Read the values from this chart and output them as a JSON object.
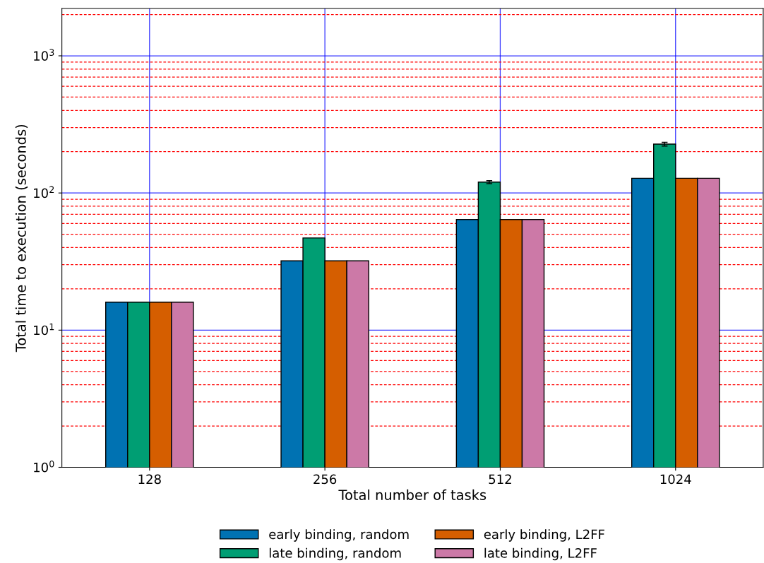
{
  "chart_data": {
    "type": "bar",
    "xlabel": "Total number of tasks",
    "ylabel": "Total time to execution (seconds)",
    "categories": [
      "128",
      "256",
      "512",
      "1024"
    ],
    "series": [
      {
        "name": "early binding, random",
        "color": "#0072b2",
        "values": [
          16,
          32,
          64,
          128
        ]
      },
      {
        "name": "late binding, random",
        "color": "#009e73",
        "values": [
          16,
          47,
          120,
          227
        ],
        "errors": [
          null,
          null,
          3,
          7
        ]
      },
      {
        "name": "early binding, L2FF",
        "color": "#d55e00",
        "values": [
          16,
          32,
          64,
          128
        ]
      },
      {
        "name": "late binding, L2FF",
        "color": "#cc79a7",
        "values": [
          16,
          32,
          64,
          128
        ]
      }
    ],
    "log": true,
    "ylim": [
      1,
      2215
    ],
    "yticks": [
      {
        "value": 1,
        "label": "10$^{0}$"
      },
      {
        "value": 10,
        "label": "10$^{1}$"
      },
      {
        "value": 100,
        "label": "10$^{2}$"
      },
      {
        "value": 1000,
        "label": "10$^{3}$"
      }
    ],
    "grid": true,
    "legend": "bottom",
    "ref_lines": [
      {
        "axis": "y",
        "value": 2,
        "color": "#ff0000",
        "line_style": "dashed"
      },
      {
        "axis": "y",
        "value": 3,
        "color": "#ff0000",
        "line_style": "dashed"
      },
      {
        "axis": "y",
        "value": 4,
        "color": "#ff0000",
        "line_style": "dashed"
      },
      {
        "axis": "y",
        "value": 5,
        "color": "#ff0000",
        "line_style": "dashed"
      },
      {
        "axis": "y",
        "value": 6,
        "color": "#ff0000",
        "line_style": "dashed"
      },
      {
        "axis": "y",
        "value": 7,
        "color": "#ff0000",
        "line_style": "dashed"
      },
      {
        "axis": "y",
        "value": 8,
        "color": "#ff0000",
        "line_style": "dashed"
      },
      {
        "axis": "y",
        "value": 9,
        "color": "#ff0000",
        "line_style": "dashed"
      },
      {
        "axis": "y",
        "value": 20,
        "color": "#ff0000",
        "line_style": "dashed"
      },
      {
        "axis": "y",
        "value": 30,
        "color": "#ff0000",
        "line_style": "dashed"
      },
      {
        "axis": "y",
        "value": 40,
        "color": "#ff0000",
        "line_style": "dashed"
      },
      {
        "axis": "y",
        "value": 50,
        "color": "#ff0000",
        "line_style": "dashed"
      },
      {
        "axis": "y",
        "value": 60,
        "color": "#ff0000",
        "line_style": "dashed"
      },
      {
        "axis": "y",
        "value": 70,
        "color": "#ff0000",
        "line_style": "dashed"
      },
      {
        "axis": "y",
        "value": 80,
        "color": "#ff0000",
        "line_style": "dashed"
      },
      {
        "axis": "y",
        "value": 90,
        "color": "#ff0000",
        "line_style": "dashed"
      },
      {
        "axis": "y",
        "value": 200,
        "color": "#ff0000",
        "line_style": "dashed"
      },
      {
        "axis": "y",
        "value": 300,
        "color": "#ff0000",
        "line_style": "dashed"
      },
      {
        "axis": "y",
        "value": 400,
        "color": "#ff0000",
        "line_style": "dashed"
      },
      {
        "axis": "y",
        "value": 500,
        "color": "#ff0000",
        "line_style": "dashed"
      },
      {
        "axis": "y",
        "value": 600,
        "color": "#ff0000",
        "line_style": "dashed"
      },
      {
        "axis": "y",
        "value": 700,
        "color": "#ff0000",
        "line_style": "dashed"
      },
      {
        "axis": "y",
        "value": 800,
        "color": "#ff0000",
        "line_style": "dashed"
      },
      {
        "axis": "y",
        "value": 900,
        "color": "#ff0000",
        "line_style": "dashed"
      },
      {
        "axis": "y",
        "value": 2000,
        "color": "#ff0000",
        "line_style": "dashed"
      }
    ]
  }
}
